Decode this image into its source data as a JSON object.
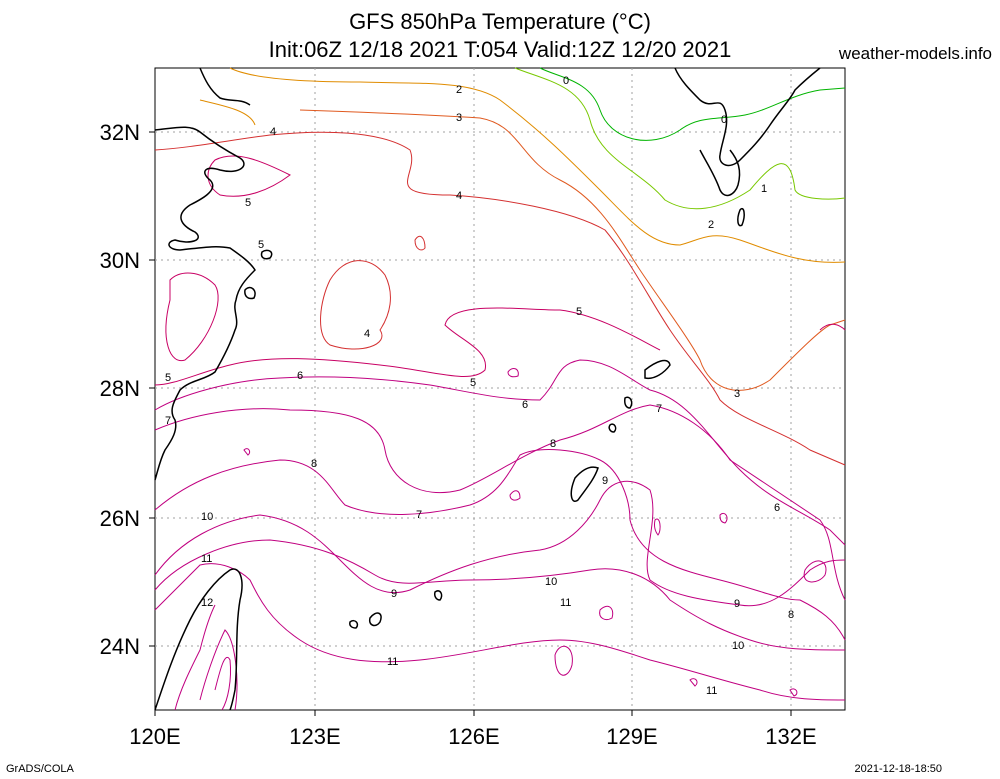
{
  "header": {
    "title_line1": "GFS 850hPa Temperature (°C)",
    "title_line2": "Init:06Z 12/18 2021 T:054 Valid:12Z 12/20 2021",
    "site": "weather-models.info"
  },
  "footer": {
    "left": "GrADS/COLA",
    "right": "2021-12-18-18:50"
  },
  "map": {
    "lat_labels": [
      "32N",
      "30N",
      "28N",
      "26N",
      "24N"
    ],
    "lon_labels": [
      "120E",
      "123E",
      "126E",
      "129E",
      "132E"
    ],
    "contour_labels": [
      "2",
      "0",
      "3",
      "0",
      "4",
      "1",
      "5",
      "4",
      "2",
      "5",
      "5",
      "4",
      "5",
      "5",
      "6",
      "6",
      "7",
      "3",
      "7",
      "8",
      "8",
      "9",
      "10",
      "7",
      "6",
      "11",
      "9",
      "10",
      "12",
      "11",
      "9",
      "8",
      "11",
      "10",
      "11"
    ],
    "colors": {
      "t0": "#00b400",
      "t1": "#78c800",
      "t2": "#e08c00",
      "t3": "#e05a20",
      "t4": "#d43030",
      "t5": "#c80064",
      "t6": "#c00080",
      "coast": "#000000",
      "grid": "#a0a0a0"
    }
  }
}
